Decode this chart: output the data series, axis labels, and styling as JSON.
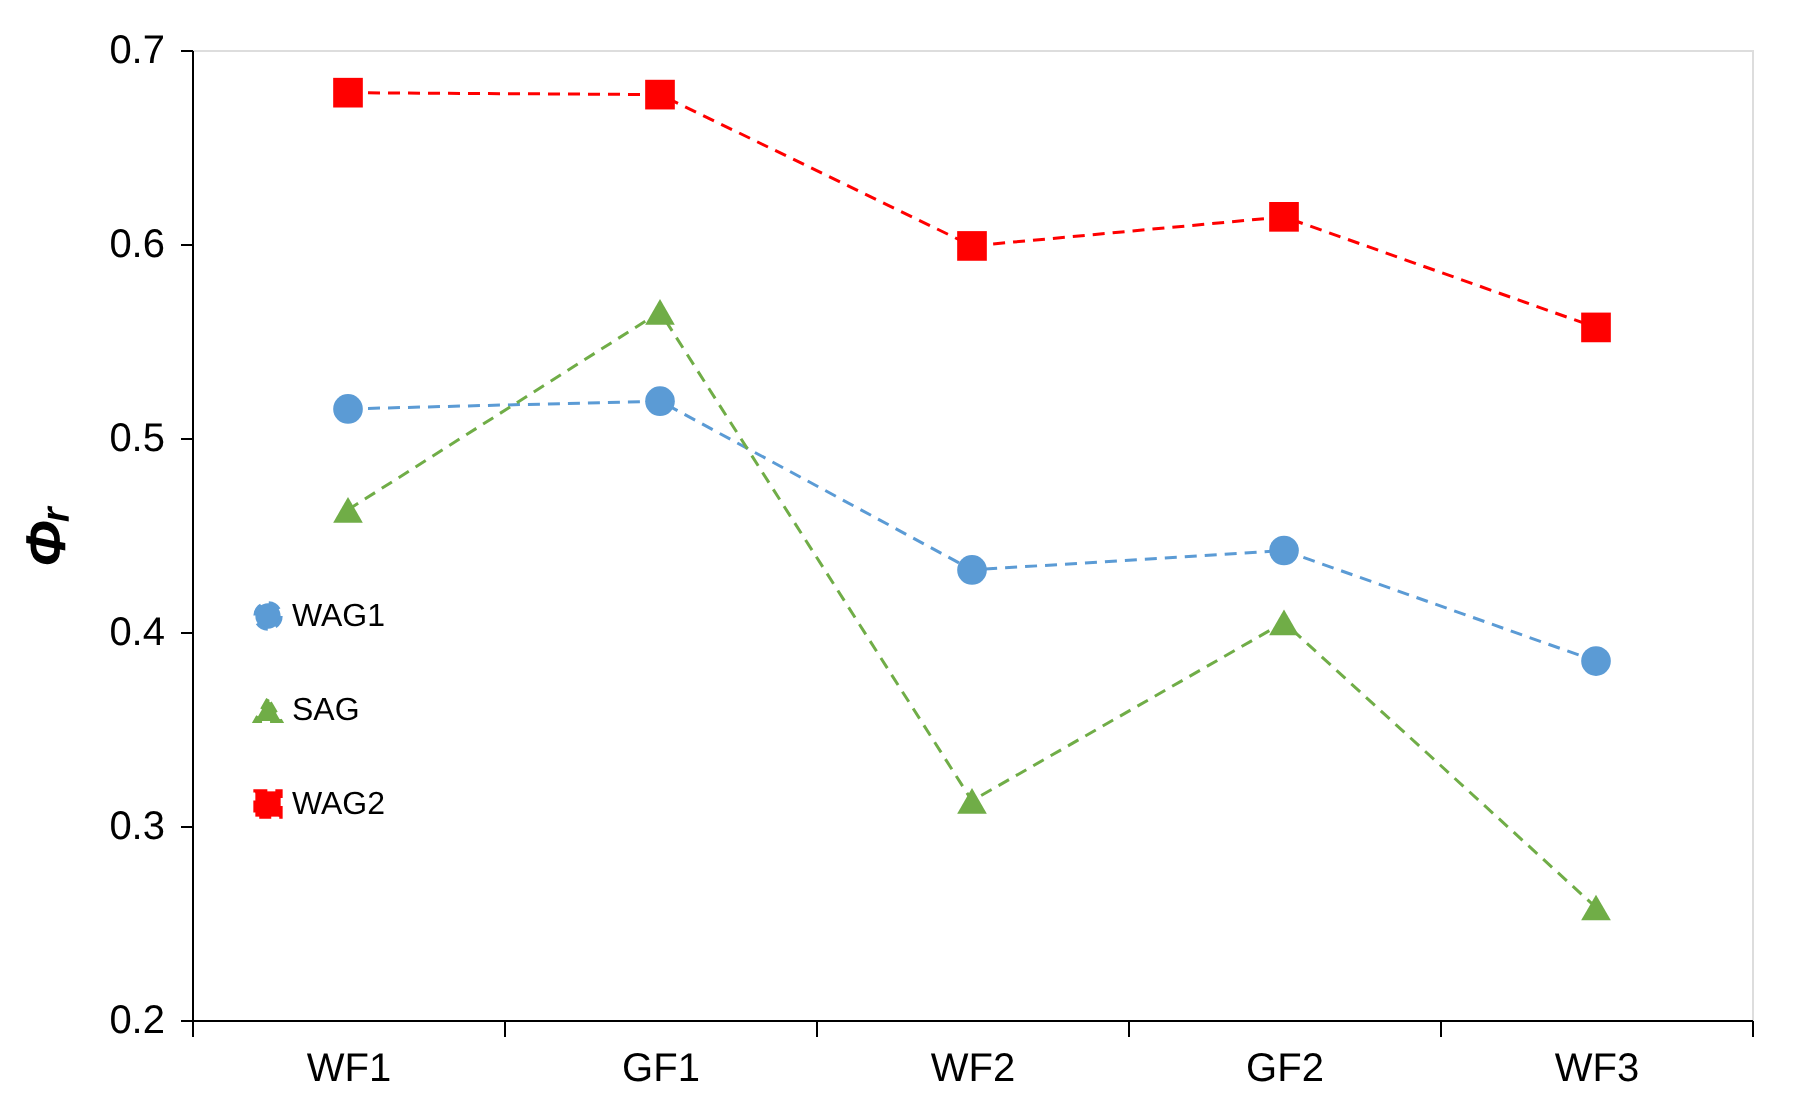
{
  "chart_data": {
    "type": "line",
    "ylabel": "Φᵣ",
    "categories": [
      "WF1",
      "GF1",
      "WF2",
      "GF2",
      "WF3"
    ],
    "series": [
      {
        "name": "WAG1",
        "color": "#5b9bd5",
        "marker": "circle",
        "values": [
          0.515,
          0.519,
          0.432,
          0.442,
          0.385
        ]
      },
      {
        "name": "SAG",
        "color": "#70ad47",
        "marker": "triangle",
        "values": [
          0.463,
          0.565,
          0.313,
          0.405,
          0.258
        ]
      },
      {
        "name": "WAG2",
        "color": "#ff0000",
        "marker": "square",
        "values": [
          0.678,
          0.677,
          0.599,
          0.614,
          0.557
        ]
      }
    ],
    "line_style": "dashed",
    "ylim": [
      0.2,
      0.7
    ],
    "yticks": [
      0.2,
      0.3,
      0.4,
      0.5,
      0.6,
      0.7
    ],
    "grid": false,
    "legend": "left"
  }
}
